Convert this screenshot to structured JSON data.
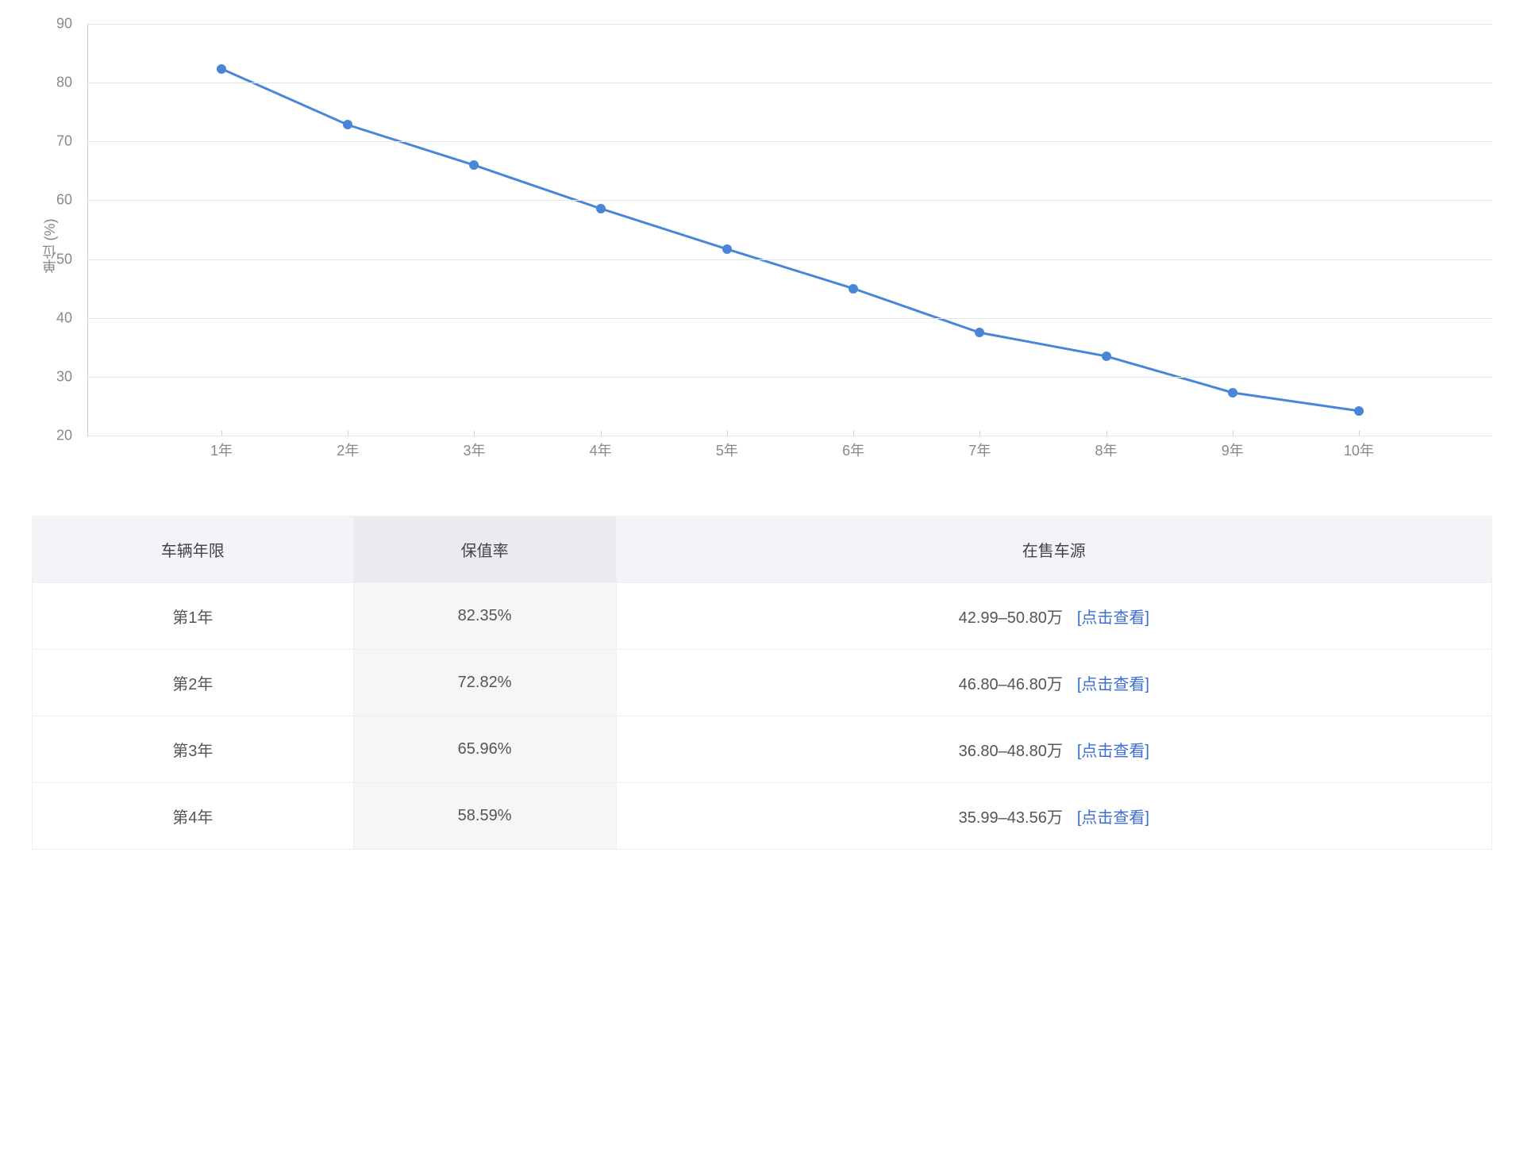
{
  "chart": {
    "type": "line",
    "y_axis_label": "单位 (%)",
    "y_min": 20,
    "y_max": 90,
    "y_ticks": [
      20,
      30,
      40,
      50,
      60,
      70,
      80,
      90
    ],
    "categories": [
      "1年",
      "2年",
      "3年",
      "4年",
      "5年",
      "6年",
      "7年",
      "8年",
      "9年",
      "10年"
    ],
    "values": [
      82.35,
      72.82,
      65.96,
      58.59,
      51.7,
      45.0,
      37.5,
      33.5,
      27.3,
      24.2
    ],
    "line_color": "#4a86d8",
    "point_fill": "#4a86d8",
    "point_radius": 6,
    "line_width": 3,
    "grid_color": "#e5e5e5",
    "axis_color": "#cccccc",
    "background_color": "#ffffff",
    "tick_label_color": "#888888",
    "tick_fontsize": 18,
    "axis_label_fontsize": 18
  },
  "table": {
    "columns": [
      "车辆年限",
      "保值率",
      "在售车源"
    ],
    "link_text": "[点击查看]",
    "rows": [
      {
        "year": "第1年",
        "rate": "82.35%",
        "range": "42.99–50.80万"
      },
      {
        "year": "第2年",
        "rate": "72.82%",
        "range": "46.80–46.80万"
      },
      {
        "year": "第3年",
        "rate": "65.96%",
        "range": "36.80–48.80万"
      },
      {
        "year": "第4年",
        "rate": "58.59%",
        "range": "35.99–43.56万"
      }
    ],
    "header_bg": "#f3f4f8",
    "header_bg_highlight": "#e9ebf1",
    "cell_highlight_bg": "#f6f6f6",
    "link_color": "#3c6fd1",
    "text_color": "#555555",
    "header_text_color": "#444444",
    "border_color": "#f0f0f0",
    "fontsize": 20
  }
}
